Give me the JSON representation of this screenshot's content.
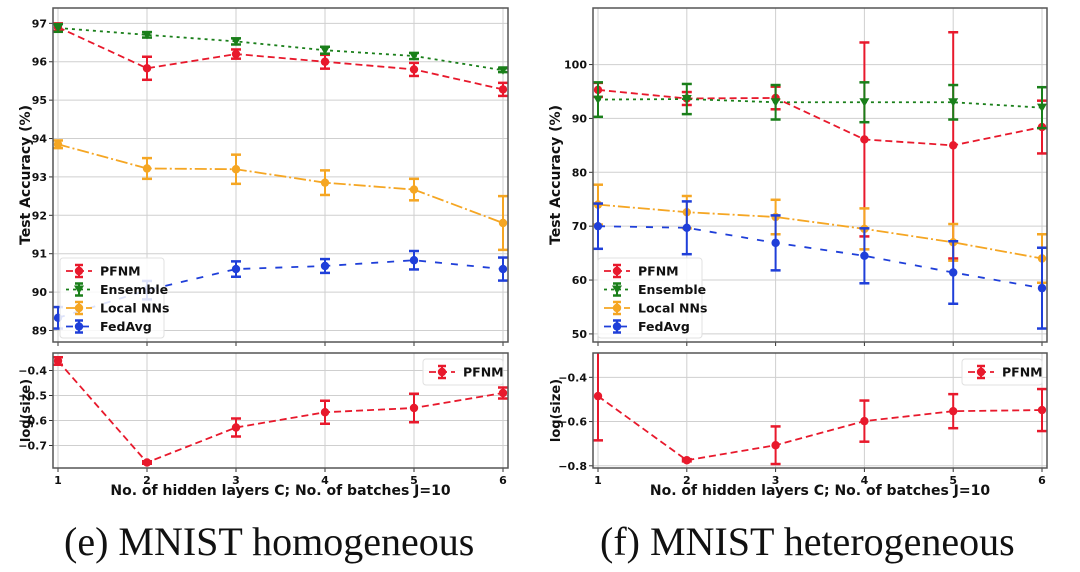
{
  "captions": {
    "e": "(e) MNIST homogeneous",
    "f": "(f) MNIST heterogeneous"
  },
  "colors": {
    "PFNM": "#e8192c",
    "Ensemble": "#1a7f1a",
    "Local NNs": "#f5a623",
    "FedAvg": "#1f3fd9",
    "grid": "#cfcfcf",
    "axes": "#555555"
  },
  "chart_data": [
    {
      "id": "e-top",
      "type": "line",
      "title": "",
      "xlabel": "",
      "ylabel": "Test Accuracy (%)",
      "x": [
        1,
        2,
        3,
        4,
        5,
        6
      ],
      "xticks": [
        "1",
        "2",
        "3",
        "4",
        "5",
        "6"
      ],
      "ylim": [
        88.7,
        97.4
      ],
      "yticks": [
        89,
        90,
        91,
        92,
        93,
        94,
        95,
        96,
        97
      ],
      "grid": true,
      "legend": "bottom-left",
      "series": [
        {
          "name": "PFNM",
          "marker": "circle",
          "linestyle": "dashed",
          "values": [
            96.9,
            95.83,
            96.2,
            96.0,
            95.8,
            95.28
          ],
          "errors": [
            0.1,
            0.3,
            0.12,
            0.18,
            0.17,
            0.17
          ]
        },
        {
          "name": "Ensemble",
          "marker": "triangle-down",
          "linestyle": "dotted",
          "values": [
            96.88,
            96.7,
            96.53,
            96.3,
            96.15,
            95.78
          ],
          "errors": [
            0.1,
            0.07,
            0.08,
            0.09,
            0.08,
            0.05
          ]
        },
        {
          "name": "Local NNs",
          "marker": "circle",
          "linestyle": "dashdot",
          "values": [
            93.85,
            93.22,
            93.2,
            92.85,
            92.67,
            91.8
          ],
          "errors": [
            0.1,
            0.27,
            0.38,
            0.32,
            0.28,
            0.7
          ]
        },
        {
          "name": "FedAvg",
          "marker": "circle",
          "linestyle": "loosely-dashed",
          "values": [
            89.33,
            90.05,
            90.6,
            90.68,
            90.83,
            90.6
          ],
          "errors": [
            0.28,
            0.24,
            0.2,
            0.18,
            0.24,
            0.3
          ]
        }
      ]
    },
    {
      "id": "e-bottom",
      "type": "line",
      "title": "",
      "xlabel": "No. of hidden layers C; No. of batches J=10",
      "ylabel": "log(size)",
      "x": [
        1,
        2,
        3,
        4,
        5,
        6
      ],
      "xticks": [
        "1",
        "2",
        "3",
        "4",
        "5",
        "6"
      ],
      "ylim": [
        -0.79,
        -0.33
      ],
      "yticks": [
        -0.4,
        -0.5,
        -0.6,
        -0.7
      ],
      "yticklabels": [
        "−0.4",
        "−0.5",
        "−0.6",
        "−0.7"
      ],
      "grid": true,
      "legend": "top-right",
      "series": [
        {
          "name": "PFNM",
          "marker": "circle",
          "linestyle": "dashed",
          "values": [
            -0.362,
            -0.768,
            -0.628,
            -0.567,
            -0.55,
            -0.49
          ],
          "errors": [
            0.015,
            0.005,
            0.036,
            0.046,
            0.057,
            0.022
          ]
        }
      ]
    },
    {
      "id": "f-top",
      "type": "line",
      "title": "",
      "xlabel": "",
      "ylabel": "Test Accuracy (%)",
      "x": [
        1,
        2,
        3,
        4,
        5,
        6
      ],
      "xticks": [
        "1",
        "2",
        "3",
        "4",
        "5",
        "6"
      ],
      "ylim": [
        48.5,
        110.5
      ],
      "yticks": [
        50,
        60,
        70,
        80,
        90,
        100
      ],
      "grid": true,
      "legend": "bottom-left",
      "series": [
        {
          "name": "PFNM",
          "marker": "circle",
          "linestyle": "dashed",
          "values": [
            95.3,
            93.7,
            93.8,
            86.1,
            85.0,
            88.4
          ],
          "errors": [
            1.3,
            1.2,
            2.1,
            18.0,
            21.0,
            4.9
          ]
        },
        {
          "name": "Ensemble",
          "marker": "triangle-down",
          "linestyle": "dotted",
          "values": [
            93.5,
            93.6,
            93.0,
            93.0,
            93.0,
            92.0
          ],
          "errors": [
            3.2,
            2.8,
            3.2,
            3.7,
            3.2,
            3.8
          ]
        },
        {
          "name": "Local NNs",
          "marker": "circle",
          "linestyle": "dashdot",
          "values": [
            74.0,
            72.6,
            71.7,
            69.5,
            67.0,
            64.0
          ],
          "errors": [
            3.7,
            3.0,
            3.2,
            3.8,
            3.4,
            4.5
          ]
        },
        {
          "name": "FedAvg",
          "marker": "circle",
          "linestyle": "loosely-dashed",
          "values": [
            70.0,
            69.7,
            66.9,
            64.5,
            61.4,
            58.5
          ],
          "errors": [
            4.2,
            4.9,
            5.1,
            5.1,
            5.8,
            7.5
          ]
        }
      ]
    },
    {
      "id": "f-bottom",
      "type": "line",
      "title": "",
      "xlabel": "No. of hidden layers C; No. of batches J=10",
      "ylabel": "log(size)",
      "x": [
        1,
        2,
        3,
        4,
        5,
        6
      ],
      "xticks": [
        "1",
        "2",
        "3",
        "4",
        "5",
        "6"
      ],
      "ylim": [
        -0.81,
        -0.29
      ],
      "yticks": [
        -0.4,
        -0.6,
        -0.8
      ],
      "yticklabels": [
        "−0.4",
        "−0.6",
        "−0.8"
      ],
      "grid": true,
      "legend": "top-right",
      "series": [
        {
          "name": "PFNM",
          "marker": "circle",
          "linestyle": "dashed",
          "values": [
            -0.485,
            -0.775,
            -0.707,
            -0.598,
            -0.553,
            -0.548
          ],
          "errors": [
            0.2,
            0.005,
            0.085,
            0.093,
            0.077,
            0.095
          ]
        }
      ]
    }
  ]
}
